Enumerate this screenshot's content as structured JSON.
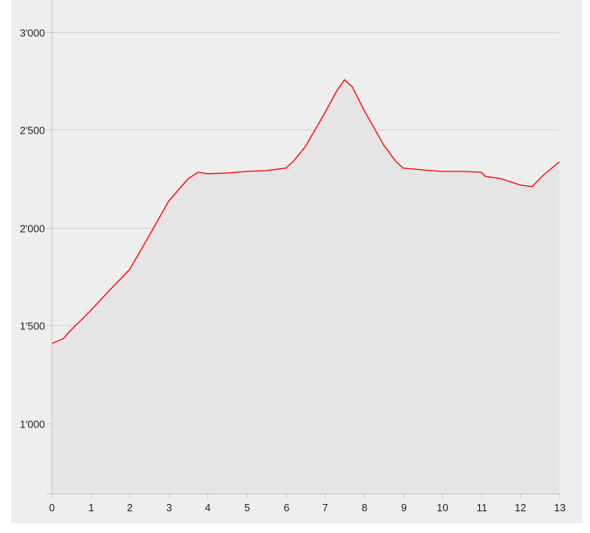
{
  "chart_data": {
    "type": "area",
    "title": "",
    "xlabel": "",
    "ylabel": "",
    "xlim": [
      0,
      13
    ],
    "ylim": [
      640,
      3165
    ],
    "x_ticks": [
      0,
      1,
      2,
      3,
      4,
      5,
      6,
      7,
      8,
      9,
      10,
      11,
      12,
      13
    ],
    "x_tick_labels": [
      "0",
      "1",
      "2",
      "3",
      "4",
      "5",
      "6",
      "7",
      "8",
      "9",
      "10",
      "11",
      "12",
      "13"
    ],
    "y_ticks": [
      1000,
      1500,
      2000,
      2500,
      3000
    ],
    "y_tick_labels": [
      "1'000",
      "1'500",
      "2'000",
      "2'500",
      "3'000"
    ],
    "grid": "horizontal",
    "colors": {
      "line": "#ff0000",
      "fill": "#e5e5e5",
      "background": "#eeeeee",
      "grid": "#d4d4d4"
    },
    "series": [
      {
        "x": [
          0,
          0.3,
          0.5,
          0.8,
          1,
          1.5,
          2,
          2.5,
          3,
          3.5,
          3.75,
          4,
          4.5,
          5,
          5.5,
          6,
          6.2,
          6.5,
          7,
          7.3,
          7.5,
          7.7,
          8,
          8.5,
          8.8,
          9,
          9.5,
          10,
          10.5,
          11,
          11.1,
          11.5,
          12,
          12.3,
          12.6,
          13
        ],
        "y": [
          1407,
          1432,
          1477,
          1535,
          1576,
          1683,
          1786,
          1959,
          2136,
          2251,
          2284,
          2276,
          2280,
          2288,
          2292,
          2305,
          2342,
          2416,
          2589,
          2700,
          2757,
          2720,
          2601,
          2424,
          2342,
          2305,
          2296,
          2288,
          2288,
          2284,
          2263,
          2251,
          2218,
          2210,
          2272,
          2337
        ]
      }
    ]
  }
}
